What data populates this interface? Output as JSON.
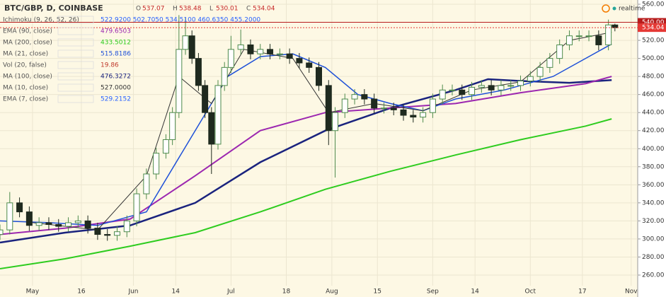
{
  "chart_data": {
    "type": "candlestick",
    "title": "BTC/GBP, D, COINBASE",
    "ohlc_header": [
      {
        "label": "O",
        "value": 537.07
      },
      {
        "label": "H",
        "value": 538.48
      },
      {
        "label": "L",
        "value": 530.01
      },
      {
        "label": "C",
        "value": 534.04
      }
    ],
    "indicators": [
      {
        "label": "Ichimoku (9, 26, 52, 26)",
        "value": "522.9200  502.7050  534.5100  460.6350  455.2000",
        "color": "#2962ff"
      },
      {
        "label": "EMA (90, close)",
        "value": "479.6503",
        "color": "#9c27b0"
      },
      {
        "label": "MA (200, close)",
        "value": "433.5012",
        "color": "#2ecc1f"
      },
      {
        "label": "MA (21, close)",
        "value": "515.8186",
        "color": "#1e50d8"
      },
      {
        "label": "Vol (20, false)",
        "value": "19.86",
        "color": "#c0392b"
      },
      {
        "label": "MA (100, close)",
        "value": "476.3272",
        "color": "#1a237e"
      },
      {
        "label": "MA (10, close)",
        "value": "527.0000",
        "color": "#333333"
      },
      {
        "label": "EMA (7, close)",
        "value": "529.2152",
        "color": "#2962ff"
      }
    ],
    "realtime": "realtime",
    "x": [
      -10,
      -7,
      -4,
      -1,
      2,
      5,
      8,
      11,
      14,
      17,
      20,
      23,
      26,
      29,
      32,
      35,
      38,
      41,
      43,
      45,
      47,
      49,
      51,
      53,
      55,
      57,
      59,
      61,
      64,
      67,
      70,
      73,
      76,
      79,
      82,
      85,
      88,
      91,
      93,
      96,
      99,
      102,
      105,
      108,
      111,
      114,
      117,
      120,
      123,
      126,
      129,
      132,
      135,
      138,
      141,
      144,
      147,
      150,
      153,
      156,
      159,
      162,
      165,
      168,
      171,
      174,
      177,
      179
    ],
    "open": [
      305,
      310,
      340,
      330,
      315,
      318,
      316,
      314,
      318,
      320,
      312,
      305,
      304,
      308,
      320,
      350,
      372,
      395,
      410,
      440,
      510,
      525,
      500,
      470,
      440,
      405,
      470,
      490,
      510,
      515,
      505,
      510,
      505,
      505,
      500,
      495,
      490,
      470,
      420,
      440,
      455,
      460,
      455,
      445,
      445,
      443,
      437,
      435,
      440,
      455,
      465,
      465,
      460,
      468,
      470,
      465,
      470,
      470,
      475,
      480,
      490,
      500,
      515,
      525,
      525,
      525,
      515,
      537.07
    ],
    "high": [
      316,
      352,
      346,
      336,
      324,
      324,
      322,
      324,
      326,
      326,
      318,
      311,
      314,
      326,
      356,
      378,
      401,
      416,
      446,
      548,
      545,
      531,
      506,
      476,
      446,
      476,
      496,
      525,
      532,
      521,
      516,
      516,
      511,
      511,
      506,
      501,
      496,
      476,
      446,
      461,
      466,
      466,
      461,
      451,
      451,
      449,
      443,
      446,
      461,
      471,
      471,
      471,
      474,
      476,
      476,
      476,
      476,
      481,
      486,
      496,
      506,
      521,
      531,
      531,
      531,
      531,
      543,
      538.48
    ],
    "low": [
      299,
      305,
      324,
      309,
      309,
      310,
      308,
      308,
      312,
      306,
      299,
      298,
      298,
      302,
      314,
      344,
      366,
      389,
      404,
      434,
      504,
      494,
      464,
      434,
      372,
      399,
      464,
      484,
      504,
      499,
      499,
      499,
      499,
      494,
      489,
      484,
      464,
      404,
      368,
      434,
      449,
      449,
      439,
      439,
      437,
      431,
      429,
      429,
      434,
      449,
      459,
      454,
      454,
      462,
      459,
      459,
      464,
      464,
      469,
      474,
      484,
      494,
      509,
      519,
      519,
      509,
      509,
      530.01
    ],
    "close": [
      310,
      340,
      330,
      315,
      318,
      316,
      314,
      318,
      320,
      312,
      305,
      304,
      308,
      320,
      350,
      372,
      395,
      410,
      440,
      510,
      525,
      500,
      470,
      440,
      405,
      470,
      490,
      510,
      515,
      505,
      510,
      505,
      505,
      500,
      495,
      490,
      470,
      420,
      440,
      455,
      460,
      455,
      445,
      445,
      443,
      437,
      435,
      440,
      455,
      465,
      465,
      460,
      468,
      470,
      465,
      470,
      470,
      475,
      480,
      490,
      500,
      515,
      525,
      525,
      525,
      515,
      537.07,
      534.04
    ],
    "up_color": "#4e8b4c",
    "down_color": "#1f2a1f",
    "series": [
      {
        "name": "MA (200, close)",
        "color": "#2ecc1f",
        "width": 2,
        "x": [
          -10,
          10,
          30,
          50,
          70,
          90,
          110,
          130,
          150,
          170,
          178
        ],
        "values": [
          267,
          278,
          292,
          307,
          330,
          355,
          375,
          393,
          410,
          425,
          433
        ]
      },
      {
        "name": "MA (100, close)",
        "color": "#1a237e",
        "width": 2.5,
        "x": [
          -10,
          10,
          30,
          50,
          70,
          90,
          110,
          130,
          140,
          150,
          165,
          178
        ],
        "values": [
          296,
          307,
          315,
          340,
          385,
          420,
          445,
          465,
          477,
          475,
          473,
          476
        ]
      },
      {
        "name": "EMA (90, close)",
        "color": "#9c27b0",
        "width": 2,
        "x": [
          -10,
          10,
          30,
          50,
          70,
          90,
          110,
          130,
          150,
          170,
          178
        ],
        "values": [
          305,
          312,
          322,
          370,
          420,
          440,
          445,
          450,
          462,
          472,
          480
        ]
      },
      {
        "name": "MA (21, close)",
        "color": "#1e50d8",
        "width": 1.5,
        "x": [
          -10,
          5,
          20,
          35,
          50,
          60,
          70,
          80,
          90,
          100,
          110,
          120,
          130,
          145,
          160,
          170,
          178
        ],
        "values": [
          320,
          318,
          315,
          330,
          420,
          480,
          502,
          505,
          490,
          460,
          450,
          442,
          455,
          465,
          480,
          500,
          516
        ]
      },
      {
        "name": "EMA (7, close)",
        "color": "#333333",
        "width": 1,
        "x": [
          0,
          20,
          35,
          45,
          55,
          65,
          80,
          91,
          105,
          120,
          135,
          150,
          165,
          178
        ],
        "values": [
          318,
          310,
          370,
          480,
          450,
          510,
          500,
          440,
          450,
          442,
          465,
          474,
          520,
          529
        ]
      }
    ],
    "xlim": [
      -10,
      186
    ],
    "ylim": [
      235.7,
      564.7
    ],
    "xticks": [
      {
        "value": 0,
        "label": "May"
      },
      {
        "value": 15,
        "label": "16"
      },
      {
        "value": 31,
        "label": "Jun"
      },
      {
        "value": 44,
        "label": "14"
      },
      {
        "value": 61,
        "label": "Jul"
      },
      {
        "value": 78,
        "label": "18"
      },
      {
        "value": 92,
        "label": "Aug"
      },
      {
        "value": 106,
        "label": "15"
      },
      {
        "value": 123,
        "label": "Sep"
      },
      {
        "value": 136,
        "label": "14"
      },
      {
        "value": 153,
        "label": "Oct"
      },
      {
        "value": 169,
        "label": "17"
      },
      {
        "value": 184,
        "label": "Nov"
      }
    ],
    "yticks": [
      {
        "value": 260,
        "label": "260.00"
      },
      {
        "value": 280,
        "label": "280.00"
      },
      {
        "value": 300,
        "label": "300.00"
      },
      {
        "value": 320,
        "label": "320.00"
      },
      {
        "value": 340,
        "label": "340.00"
      },
      {
        "value": 360,
        "label": "360.00"
      },
      {
        "value": 380,
        "label": "380.00"
      },
      {
        "value": 400,
        "label": "400.00"
      },
      {
        "value": 420,
        "label": "420.00"
      },
      {
        "value": 440,
        "label": "440.00"
      },
      {
        "value": 460,
        "label": "460.00"
      },
      {
        "value": 480,
        "label": "480.00"
      },
      {
        "value": 500,
        "label": "500.00"
      },
      {
        "value": 520,
        "label": "520.00"
      },
      {
        "value": 540,
        "label": "540.00"
      },
      {
        "value": 560,
        "label": "560.00"
      }
    ],
    "price_labels": [
      {
        "value": 540,
        "label": "540.00",
        "color": "#b71c1c"
      },
      {
        "value": 534.04,
        "label": "534.04",
        "color": "#e53935"
      }
    ],
    "grid": true
  }
}
